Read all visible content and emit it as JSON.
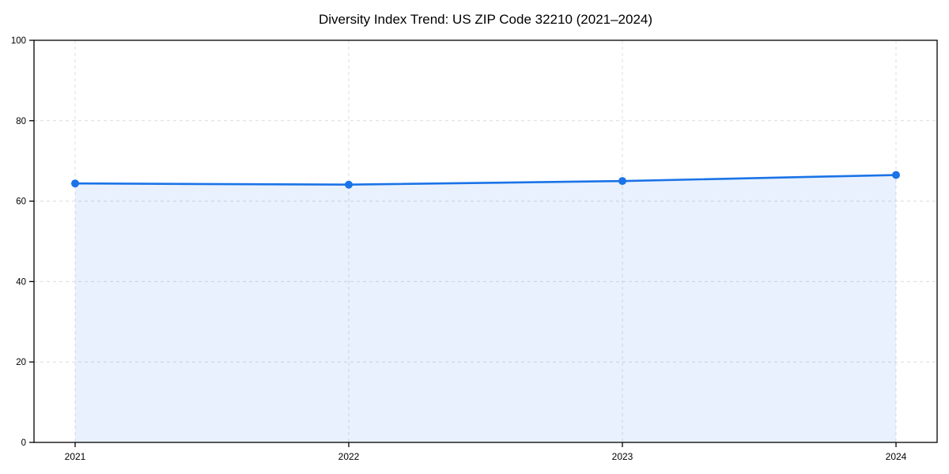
{
  "chart_data": {
    "type": "line",
    "title": "Diversity Index Trend: US ZIP Code 32210 (2021–2024)",
    "x": [
      2021,
      2022,
      2023,
      2024
    ],
    "categories": [
      "2021",
      "2022",
      "2023",
      "2024"
    ],
    "series": [
      {
        "name": "Diversity Index",
        "values": [
          64.4,
          64.1,
          65.0,
          66.5
        ]
      }
    ],
    "xlabel": "",
    "ylabel": "",
    "ylim": [
      0,
      100
    ],
    "yticks": [
      0,
      20,
      40,
      60,
      80,
      100
    ],
    "xticks": [
      "2021",
      "2022",
      "2023",
      "2024"
    ],
    "grid": true,
    "grid_style": "dashed",
    "legend_position": "none",
    "marker": "circle",
    "area_fill": true
  },
  "colors": {
    "line": "#1a73e8",
    "marker": "#1a73e8",
    "fill": "#1a73e8",
    "fill_opacity": 0.1,
    "grid": "#dcdcdc",
    "spine": "#000000",
    "tick": "#000000",
    "text": "#000000",
    "background": "#ffffff"
  }
}
